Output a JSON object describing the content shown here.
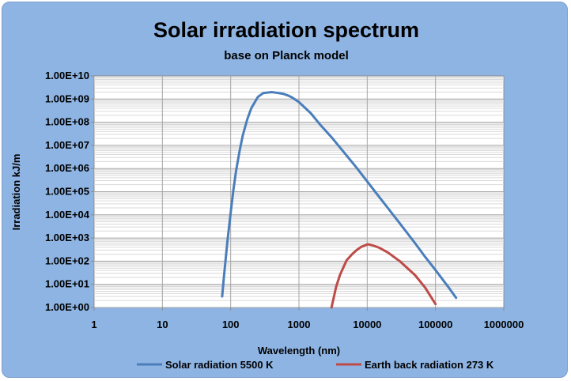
{
  "chart_data": {
    "type": "line",
    "title": "Solar irradiation spectrum",
    "subtitle": "base on Planck model",
    "xlabel": "Wavelength (nm)",
    "ylabel": "Irradiation kJ/m",
    "xscale": "log",
    "yscale": "log",
    "xlim": [
      1,
      1000000
    ],
    "ylim": [
      1,
      10000000000
    ],
    "x_tick_labels": [
      "1",
      "10",
      "100",
      "1000",
      "10000",
      "100000",
      "1000000"
    ],
    "y_tick_labels": [
      "1.00E+00",
      "1.00E+01",
      "1.00E+02",
      "1.00E+03",
      "1.00E+04",
      "1.00E+05",
      "1.00E+06",
      "1.00E+07",
      "1.00E+08",
      "1.00E+09",
      "1.00E+10"
    ],
    "grid": true,
    "legend_position": "bottom",
    "series": [
      {
        "name": "Solar radiation 5500 K",
        "color": "#4a7ebb",
        "x": [
          75,
          80,
          85,
          90,
          100,
          110,
          120,
          135,
          150,
          175,
          200,
          250,
          300,
          400,
          500,
          527,
          600,
          700,
          800,
          1000,
          1500,
          2000,
          3000,
          5000,
          7000,
          10000,
          15000,
          20000,
          30000,
          50000,
          70000,
          100000,
          150000,
          200000
        ],
        "y": [
          3,
          24,
          152,
          794,
          12600,
          125900,
          794000,
          5620000,
          26300000,
          132000000,
          398000000,
          1230000000,
          1820000000,
          2000000000,
          1820000000,
          1780000000,
          1660000000,
          1410000000,
          1150000000,
          741000000,
          240000000,
          85100000,
          22400000,
          3630000,
          1070000,
          275000,
          59000,
          20000,
          4270,
          603,
          158,
          41,
          8.5,
          2.6
        ]
      },
      {
        "name": "Earth back radiation 273 K",
        "color": "#be4b48",
        "x": [
          3000,
          3500,
          4000,
          5000,
          6000,
          7000,
          8000,
          9000,
          10000,
          10600,
          12000,
          15000,
          20000,
          30000,
          50000,
          70000,
          100000
        ],
        "y": [
          1,
          7.8,
          26,
          110,
          200,
          300,
          400,
          468,
          525,
          525,
          480,
          380,
          240,
          100,
          25,
          7.5,
          1.4
        ]
      }
    ]
  }
}
